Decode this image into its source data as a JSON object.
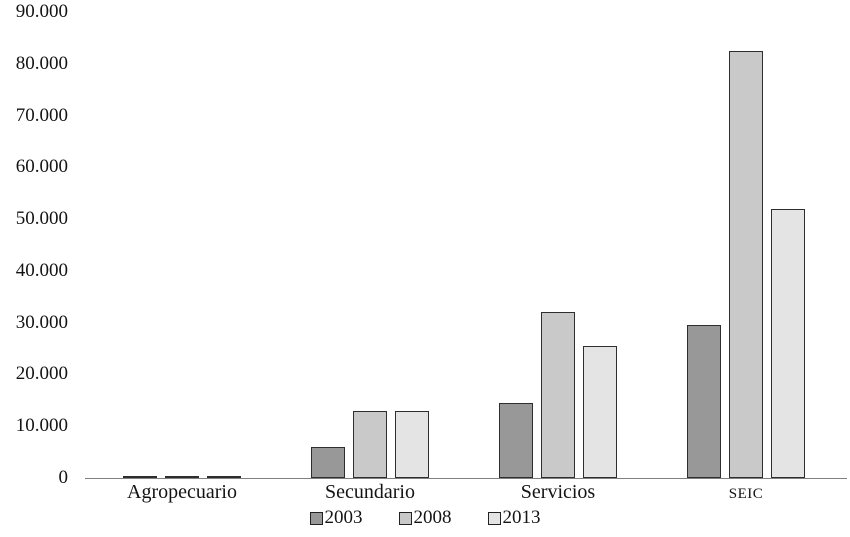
{
  "chart_data": {
    "type": "bar",
    "title": "",
    "xlabel": "",
    "ylabel": "",
    "categories": [
      "Agropecuario",
      "Secundario",
      "Servicios",
      "SEIC"
    ],
    "series": [
      {
        "name": "2003",
        "color": "#989898",
        "values": [
          400,
          6000,
          14500,
          29500
        ]
      },
      {
        "name": "2008",
        "color": "#c9c9c9",
        "values": [
          400,
          13000,
          32000,
          82500
        ]
      },
      {
        "name": "2013",
        "color": "#e4e4e4",
        "values": [
          300,
          13000,
          25500,
          52000
        ]
      }
    ],
    "ylim": [
      0,
      90000
    ],
    "ytick_step": 10000,
    "ytick_labels": [
      "0",
      "10.000",
      "20.000",
      "30.000",
      "40.000",
      "50.000",
      "60.000",
      "70.000",
      "80.000",
      "90.000"
    ],
    "grid": false,
    "legend_position": "bottom"
  }
}
